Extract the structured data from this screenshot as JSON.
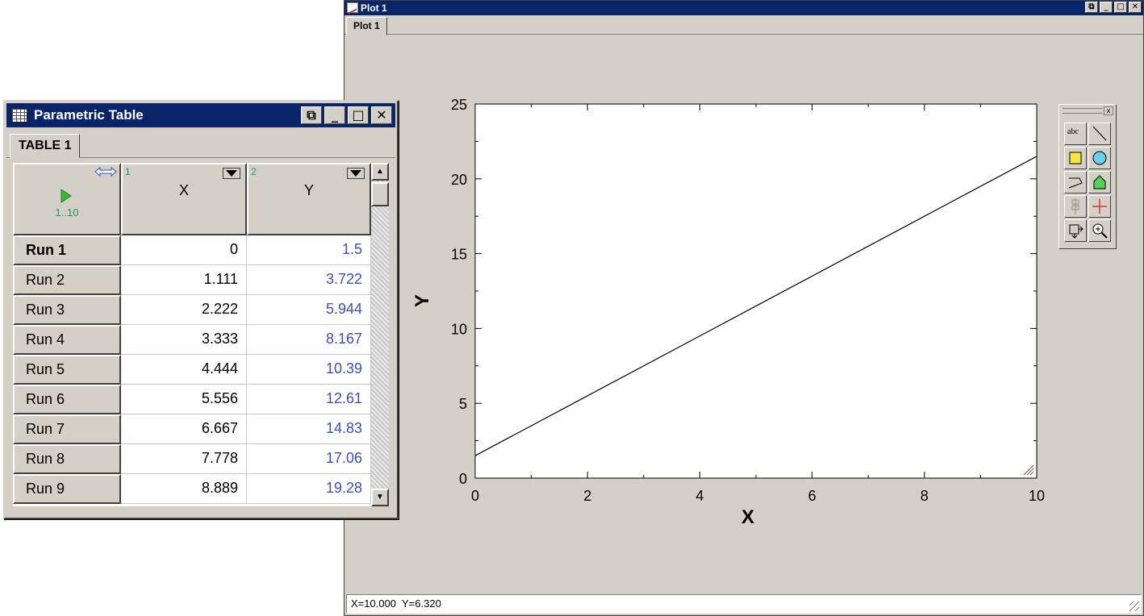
{
  "plot_window": {
    "title": "Plot 1",
    "tab_label": "Plot 1",
    "status": "X=10.000  Y=6.320",
    "window_buttons": [
      "⧉",
      "_",
      "□",
      "✕"
    ]
  },
  "chart_data": {
    "type": "line",
    "xlabel": "X",
    "ylabel": "Y",
    "xlim": [
      0,
      10
    ],
    "ylim": [
      0,
      25
    ],
    "xticks": [
      0,
      2,
      4,
      6,
      8,
      10
    ],
    "yticks": [
      0,
      5,
      10,
      15,
      20,
      25
    ],
    "grid": false,
    "series": [
      {
        "x": [
          0,
          10
        ],
        "y": [
          1.5,
          21.5
        ]
      }
    ]
  },
  "tool_palette": {
    "tools": [
      "text-tool",
      "line-tool",
      "rectangle-tool",
      "oval-tool",
      "polyline-tool",
      "polygon-tool",
      "align-tool",
      "crosshair-tool",
      "move-tool",
      "zoom-tool"
    ],
    "text_tool_label": "abc"
  },
  "table_window": {
    "title": "Parametric Table",
    "tab_label": "TABLE 1",
    "run_range": "1..10",
    "columns": [
      {
        "number": "1",
        "name": "X"
      },
      {
        "number": "2",
        "name": "Y"
      }
    ],
    "rows": [
      {
        "run": "Run 1",
        "x": "0",
        "y": "1.5"
      },
      {
        "run": "Run 2",
        "x": "1.111",
        "y": "3.722"
      },
      {
        "run": "Run 3",
        "x": "2.222",
        "y": "5.944"
      },
      {
        "run": "Run 4",
        "x": "3.333",
        "y": "8.167"
      },
      {
        "run": "Run 5",
        "x": "4.444",
        "y": "10.39"
      },
      {
        "run": "Run 6",
        "x": "5.556",
        "y": "12.61"
      },
      {
        "run": "Run 7",
        "x": "6.667",
        "y": "14.83"
      },
      {
        "run": "Run 8",
        "x": "7.778",
        "y": "17.06"
      },
      {
        "run": "Run 9",
        "x": "8.889",
        "y": "19.28"
      }
    ]
  }
}
